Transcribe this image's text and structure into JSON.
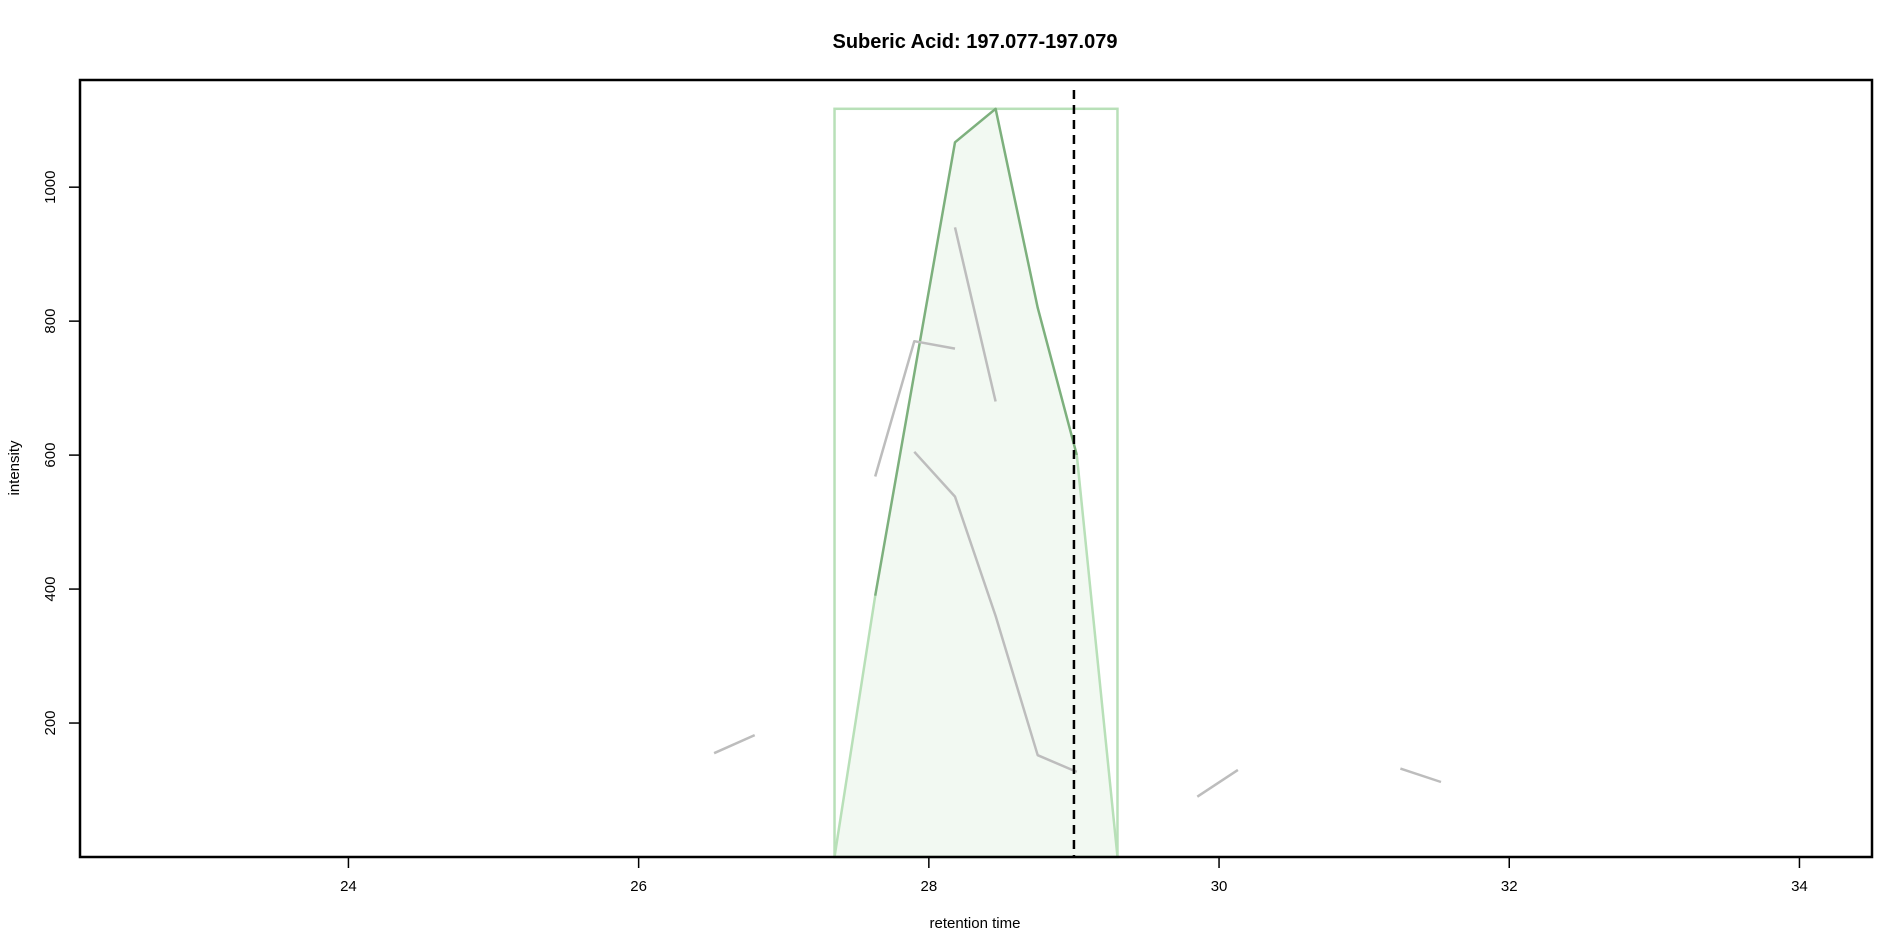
{
  "chart_data": {
    "type": "line",
    "title": "Suberic Acid: 197.077-197.079",
    "xlabel": "retention time",
    "ylabel": "intensity",
    "xlim": [
      22.15,
      34.5
    ],
    "ylim": [
      0,
      1160
    ],
    "xticks": [
      24,
      26,
      28,
      30,
      32,
      34
    ],
    "yticks": [
      200,
      400,
      600,
      800,
      1000
    ],
    "grid": false,
    "legend": "none",
    "vline": {
      "x": 29.0,
      "color": "#000000",
      "style": "dashed"
    },
    "peak_rect": {
      "x0": 27.35,
      "x1": 29.3,
      "y0": 0,
      "y1": 1117,
      "color": "#b8e0b8"
    },
    "peak_fill": {
      "color": "#f2f9f2",
      "points": [
        [
          27.35,
          0
        ],
        [
          27.63,
          390
        ],
        [
          28.18,
          1067
        ],
        [
          28.46,
          1117
        ],
        [
          28.75,
          820
        ],
        [
          29.02,
          600
        ],
        [
          29.3,
          0
        ]
      ]
    },
    "series": [
      {
        "color": "#7db07d",
        "width": 2.5,
        "points": [
          [
            27.63,
            390
          ],
          [
            28.18,
            1067
          ],
          [
            28.46,
            1117
          ],
          [
            28.75,
            820
          ],
          [
            29.02,
            600
          ]
        ]
      },
      {
        "color": "#b8e0b8",
        "width": 2.5,
        "points": [
          [
            27.35,
            0
          ],
          [
            27.63,
            390
          ]
        ]
      },
      {
        "color": "#b8e0b8",
        "width": 2.5,
        "points": [
          [
            29.02,
            600
          ],
          [
            29.3,
            0
          ]
        ]
      },
      {
        "color": "#bdbdbd",
        "width": 2.5,
        "points": [
          [
            26.52,
            155
          ],
          [
            26.8,
            182
          ]
        ]
      },
      {
        "color": "#bdbdbd",
        "width": 2.5,
        "points": [
          [
            27.63,
            568
          ],
          [
            27.9,
            770
          ],
          [
            28.18,
            759
          ]
        ]
      },
      {
        "color": "#bdbdbd",
        "width": 2.5,
        "points": [
          [
            28.18,
            940
          ],
          [
            28.46,
            680
          ]
        ]
      },
      {
        "color": "#bdbdbd",
        "width": 2.5,
        "points": [
          [
            27.9,
            605
          ],
          [
            28.18,
            538
          ],
          [
            28.46,
            360
          ],
          [
            28.75,
            152
          ],
          [
            29.02,
            127
          ]
        ]
      },
      {
        "color": "#bdbdbd",
        "width": 2.5,
        "points": [
          [
            29.85,
            90
          ],
          [
            30.13,
            130
          ]
        ]
      },
      {
        "color": "#bdbdbd",
        "width": 2.5,
        "points": [
          [
            31.25,
            132
          ],
          [
            31.53,
            112
          ]
        ]
      }
    ]
  }
}
